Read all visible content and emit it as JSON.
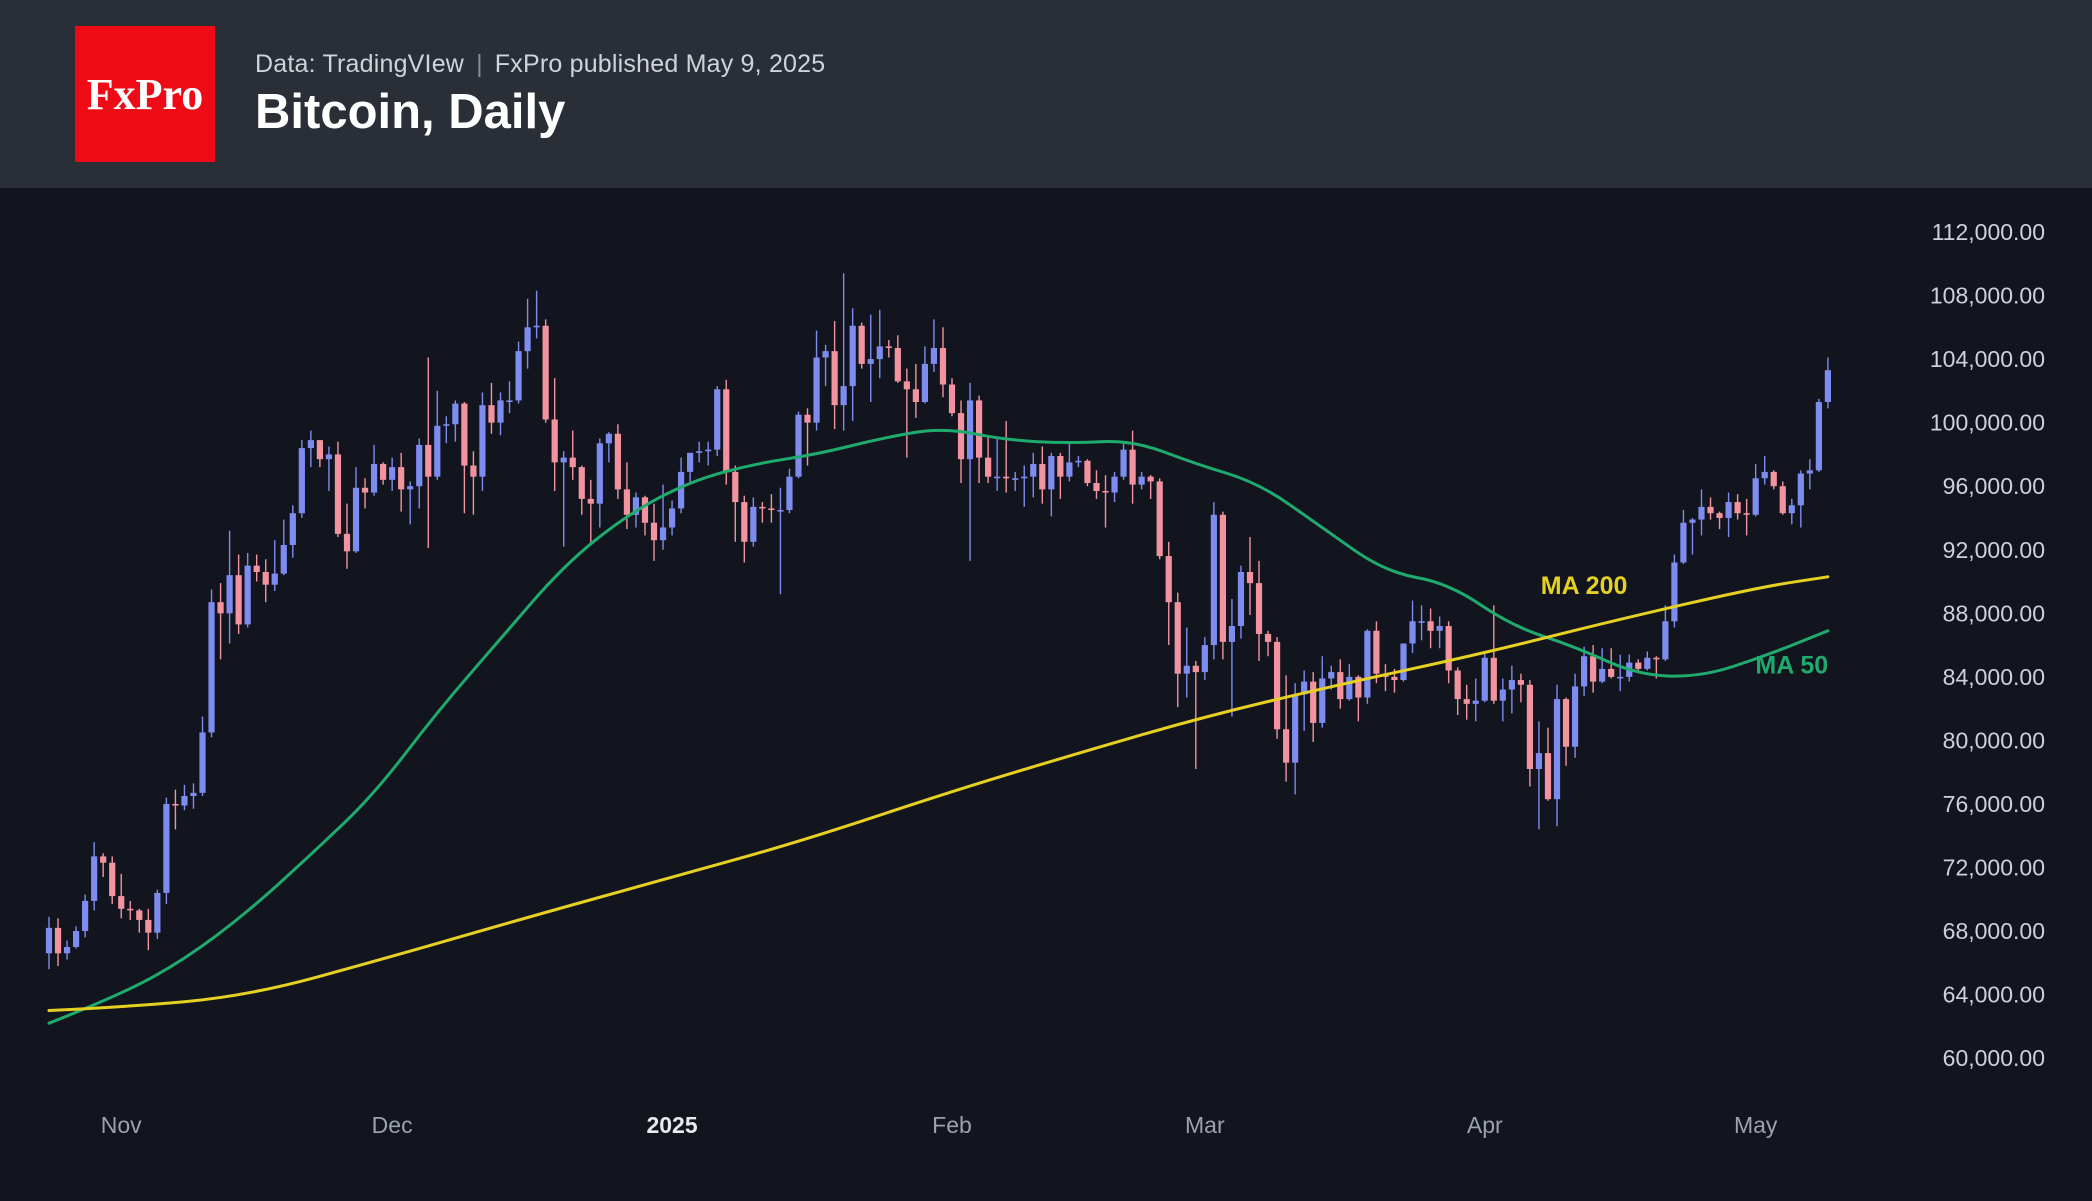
{
  "header": {
    "logo_text": "FxPro",
    "source_line": "Data: TradingVIew",
    "separator": "|",
    "published_line": "FxPro published May 9, 2025",
    "title": "Bitcoin, Daily"
  },
  "chart_data": {
    "type": "candlestick",
    "title": "Bitcoin, Daily",
    "interval": "daily",
    "start_date": "2024-10-24",
    "end_date": "2025-05-09",
    "price_unit": "USD, candle and MA values stored in thousands",
    "grid": false,
    "legend": false,
    "up_color": "#7e8bef",
    "down_color": "#f2939f",
    "y_axis": {
      "max": 112000,
      "min": 60000,
      "step": 4000,
      "tick_labels": [
        "112,000.00",
        "108,000.00",
        "104,000.00",
        "100,000.00",
        "96,000.00",
        "92,000.00",
        "88,000.00",
        "84,000.00",
        "80,000.00",
        "76,000.00",
        "72,000.00",
        "68,000.00",
        "64,000.00",
        "60,000.00"
      ]
    },
    "x_axis": {
      "labels": [
        {
          "text": "Nov",
          "day": 8,
          "emphasis": false
        },
        {
          "text": "Dec",
          "day": 38,
          "emphasis": false
        },
        {
          "text": "2025",
          "day": 69,
          "emphasis": true
        },
        {
          "text": "Feb",
          "day": 100,
          "emphasis": false
        },
        {
          "text": "Mar",
          "day": 128,
          "emphasis": false
        },
        {
          "text": "Apr",
          "day": 159,
          "emphasis": false
        },
        {
          "text": "May",
          "day": 189,
          "emphasis": false
        }
      ]
    },
    "candles": [
      [
        66.6,
        68.9,
        65.6,
        68.2
      ],
      [
        68.2,
        68.8,
        65.8,
        66.6
      ],
      [
        66.6,
        67.4,
        66.2,
        67.0
      ],
      [
        67.0,
        68.3,
        66.9,
        68.0
      ],
      [
        68.0,
        70.3,
        67.6,
        69.9
      ],
      [
        69.9,
        73.6,
        69.3,
        72.7
      ],
      [
        72.7,
        72.9,
        71.4,
        72.3
      ],
      [
        72.3,
        72.7,
        69.7,
        70.2
      ],
      [
        70.2,
        71.6,
        68.8,
        69.4
      ],
      [
        69.4,
        69.9,
        68.7,
        69.3
      ],
      [
        69.3,
        69.4,
        67.9,
        68.7
      ],
      [
        68.7,
        69.4,
        66.8,
        67.9
      ],
      [
        67.9,
        70.6,
        67.5,
        70.4
      ],
      [
        70.4,
        76.4,
        69.7,
        76.0
      ],
      [
        76.0,
        76.9,
        74.4,
        75.9
      ],
      [
        75.9,
        77.2,
        75.6,
        76.5
      ],
      [
        76.5,
        77.3,
        75.7,
        76.7
      ],
      [
        76.7,
        81.5,
        76.5,
        80.5
      ],
      [
        80.5,
        89.5,
        80.2,
        88.7
      ],
      [
        88.7,
        89.9,
        85.1,
        88.0
      ],
      [
        88.0,
        93.2,
        86.1,
        90.4
      ],
      [
        90.4,
        91.7,
        86.7,
        87.3
      ],
      [
        87.3,
        91.8,
        87.1,
        91.0
      ],
      [
        91.0,
        91.7,
        90.0,
        90.6
      ],
      [
        90.6,
        91.4,
        88.7,
        89.8
      ],
      [
        89.8,
        92.6,
        89.4,
        90.5
      ],
      [
        90.5,
        93.9,
        90.4,
        92.3
      ],
      [
        92.3,
        94.8,
        91.5,
        94.3
      ],
      [
        94.3,
        98.9,
        94.0,
        98.4
      ],
      [
        98.4,
        99.5,
        97.2,
        98.9
      ],
      [
        98.9,
        98.9,
        97.2,
        97.7
      ],
      [
        97.7,
        98.5,
        95.7,
        98.0
      ],
      [
        98.0,
        98.8,
        92.8,
        93.0
      ],
      [
        93.0,
        94.9,
        90.8,
        91.9
      ],
      [
        91.9,
        97.2,
        91.8,
        95.9
      ],
      [
        95.9,
        96.5,
        94.6,
        95.6
      ],
      [
        95.6,
        98.6,
        95.4,
        97.4
      ],
      [
        97.4,
        97.5,
        96.1,
        96.4
      ],
      [
        96.4,
        97.8,
        95.7,
        97.2
      ],
      [
        97.2,
        98.1,
        94.4,
        95.8
      ],
      [
        95.8,
        96.3,
        93.6,
        96.0
      ],
      [
        96.0,
        99.0,
        94.6,
        98.6
      ],
      [
        98.6,
        104.1,
        92.1,
        96.6
      ],
      [
        96.6,
        102.0,
        96.4,
        99.8
      ],
      [
        99.8,
        100.4,
        98.7,
        99.9
      ],
      [
        99.9,
        101.4,
        98.8,
        101.2
      ],
      [
        101.2,
        101.3,
        94.3,
        97.3
      ],
      [
        97.3,
        98.2,
        94.2,
        96.6
      ],
      [
        96.6,
        101.9,
        95.7,
        101.1
      ],
      [
        101.1,
        102.5,
        99.3,
        100.0
      ],
      [
        100.0,
        101.9,
        99.2,
        101.4
      ],
      [
        101.4,
        102.6,
        100.6,
        101.4
      ],
      [
        101.4,
        105.1,
        101.2,
        104.5
      ],
      [
        104.5,
        107.8,
        103.4,
        106.0
      ],
      [
        106.0,
        108.3,
        105.3,
        106.1
      ],
      [
        106.1,
        106.5,
        100.0,
        100.2
      ],
      [
        100.2,
        102.8,
        95.7,
        97.5
      ],
      [
        97.5,
        98.2,
        92.2,
        97.8
      ],
      [
        97.8,
        99.5,
        96.4,
        97.2
      ],
      [
        97.2,
        97.3,
        94.2,
        95.2
      ],
      [
        95.2,
        96.4,
        92.4,
        94.9
      ],
      [
        94.9,
        99.0,
        93.4,
        98.7
      ],
      [
        98.7,
        99.4,
        97.5,
        99.3
      ],
      [
        99.3,
        99.9,
        95.2,
        95.8
      ],
      [
        95.8,
        97.5,
        93.3,
        94.2
      ],
      [
        94.2,
        95.6,
        93.4,
        95.3
      ],
      [
        95.3,
        95.4,
        92.9,
        93.7
      ],
      [
        93.7,
        94.9,
        91.3,
        92.6
      ],
      [
        92.6,
        96.1,
        92.0,
        93.4
      ],
      [
        93.4,
        95.1,
        92.9,
        94.6
      ],
      [
        94.6,
        97.8,
        94.3,
        96.9
      ],
      [
        96.9,
        98.1,
        96.1,
        98.1
      ],
      [
        98.1,
        98.8,
        97.5,
        98.2
      ],
      [
        98.2,
        98.8,
        97.3,
        98.3
      ],
      [
        98.3,
        102.3,
        97.9,
        102.1
      ],
      [
        102.1,
        102.7,
        96.1,
        96.9
      ],
      [
        96.9,
        97.3,
        92.5,
        95.0
      ],
      [
        95.0,
        95.4,
        91.2,
        92.5
      ],
      [
        92.5,
        95.3,
        92.2,
        94.7
      ],
      [
        94.7,
        95.0,
        93.7,
        94.6
      ],
      [
        94.6,
        95.5,
        93.7,
        94.5
      ],
      [
        94.5,
        95.9,
        89.2,
        94.5
      ],
      [
        94.5,
        97.1,
        94.3,
        96.6
      ],
      [
        96.6,
        100.7,
        96.5,
        100.5
      ],
      [
        100.5,
        100.9,
        97.3,
        100.0
      ],
      [
        100.0,
        105.8,
        99.5,
        104.1
      ],
      [
        104.1,
        104.9,
        102.3,
        104.5
      ],
      [
        104.5,
        106.4,
        99.6,
        101.1
      ],
      [
        101.1,
        109.4,
        99.5,
        102.3
      ],
      [
        102.3,
        107.2,
        100.1,
        106.1
      ],
      [
        106.1,
        106.3,
        103.4,
        103.7
      ],
      [
        103.7,
        106.8,
        101.3,
        104.0
      ],
      [
        104.0,
        107.1,
        102.8,
        104.8
      ],
      [
        104.8,
        105.2,
        104.1,
        104.7
      ],
      [
        104.7,
        105.5,
        102.5,
        102.6
      ],
      [
        102.6,
        103.4,
        97.8,
        102.1
      ],
      [
        102.1,
        103.7,
        100.3,
        101.3
      ],
      [
        101.3,
        104.8,
        101.2,
        103.7
      ],
      [
        103.7,
        106.5,
        103.2,
        104.7
      ],
      [
        104.7,
        106.0,
        101.6,
        102.4
      ],
      [
        102.4,
        102.8,
        100.4,
        100.6
      ],
      [
        100.6,
        101.4,
        96.2,
        97.7
      ],
      [
        97.7,
        102.5,
        91.3,
        101.4
      ],
      [
        101.4,
        101.7,
        96.2,
        97.8
      ],
      [
        97.8,
        99.1,
        96.2,
        96.6
      ],
      [
        96.6,
        99.1,
        95.7,
        96.6
      ],
      [
        96.6,
        100.1,
        95.6,
        96.5
      ],
      [
        96.5,
        96.9,
        95.7,
        96.5
      ],
      [
        96.5,
        97.3,
        94.7,
        96.6
      ],
      [
        96.6,
        98.1,
        95.3,
        97.4
      ],
      [
        97.4,
        98.5,
        94.9,
        95.8
      ],
      [
        95.8,
        98.1,
        94.1,
        97.9
      ],
      [
        97.9,
        98.1,
        95.2,
        96.6
      ],
      [
        96.6,
        98.8,
        96.3,
        97.5
      ],
      [
        97.5,
        97.9,
        97.2,
        97.6
      ],
      [
        97.6,
        97.7,
        96.0,
        96.2
      ],
      [
        96.2,
        97.0,
        95.2,
        95.7
      ],
      [
        95.7,
        96.7,
        93.4,
        95.6
      ],
      [
        95.6,
        96.9,
        95.0,
        96.6
      ],
      [
        96.6,
        98.8,
        96.4,
        98.3
      ],
      [
        98.3,
        99.5,
        94.9,
        96.1
      ],
      [
        96.1,
        96.9,
        95.8,
        96.6
      ],
      [
        96.6,
        96.7,
        95.2,
        96.3
      ],
      [
        96.3,
        96.5,
        91.4,
        91.6
      ],
      [
        91.6,
        92.5,
        86.0,
        88.7
      ],
      [
        88.7,
        89.3,
        82.1,
        84.2
      ],
      [
        84.2,
        87.1,
        82.7,
        84.7
      ],
      [
        84.7,
        85.0,
        78.2,
        84.3
      ],
      [
        84.3,
        86.5,
        83.8,
        86.0
      ],
      [
        86.0,
        95.0,
        85.1,
        94.2
      ],
      [
        94.2,
        94.4,
        85.1,
        86.2
      ],
      [
        86.2,
        88.9,
        81.5,
        87.2
      ],
      [
        87.2,
        91.0,
        86.4,
        90.6
      ],
      [
        90.6,
        92.8,
        87.9,
        89.9
      ],
      [
        89.9,
        91.3,
        85.0,
        86.7
      ],
      [
        86.7,
        86.9,
        85.3,
        86.2
      ],
      [
        86.2,
        86.5,
        80.1,
        80.7
      ],
      [
        80.7,
        84.1,
        77.4,
        78.6
      ],
      [
        78.6,
        83.6,
        76.6,
        82.9
      ],
      [
        82.9,
        84.4,
        80.6,
        83.7
      ],
      [
        83.7,
        84.3,
        79.9,
        81.1
      ],
      [
        81.1,
        85.3,
        80.8,
        83.9
      ],
      [
        83.9,
        84.7,
        83.2,
        84.3
      ],
      [
        84.3,
        85.1,
        82.0,
        82.6
      ],
      [
        82.6,
        84.8,
        82.5,
        84.0
      ],
      [
        84.0,
        84.1,
        81.2,
        82.7
      ],
      [
        82.7,
        87.0,
        82.3,
        86.9
      ],
      [
        86.9,
        87.5,
        83.6,
        84.2
      ],
      [
        84.2,
        84.8,
        83.1,
        84.0
      ],
      [
        84.0,
        84.5,
        83.0,
        83.8
      ],
      [
        83.8,
        86.1,
        83.7,
        86.1
      ],
      [
        86.1,
        88.8,
        85.5,
        87.5
      ],
      [
        87.5,
        88.5,
        86.3,
        87.5
      ],
      [
        87.5,
        88.3,
        85.8,
        86.9
      ],
      [
        86.9,
        87.8,
        85.8,
        87.2
      ],
      [
        87.2,
        87.5,
        83.6,
        84.4
      ],
      [
        84.4,
        84.6,
        81.6,
        82.6
      ],
      [
        82.6,
        83.5,
        81.3,
        82.3
      ],
      [
        82.3,
        83.9,
        81.2,
        82.5
      ],
      [
        82.5,
        85.5,
        82.4,
        85.2
      ],
      [
        85.2,
        88.5,
        82.3,
        82.5
      ],
      [
        82.5,
        83.9,
        81.2,
        83.2
      ],
      [
        83.2,
        84.7,
        81.7,
        83.8
      ],
      [
        83.8,
        84.2,
        82.4,
        83.5
      ],
      [
        83.5,
        83.8,
        77.1,
        78.2
      ],
      [
        78.2,
        81.2,
        74.4,
        79.2
      ],
      [
        79.2,
        80.8,
        76.2,
        76.3
      ],
      [
        76.3,
        83.5,
        74.6,
        82.6
      ],
      [
        82.6,
        82.7,
        78.4,
        79.6
      ],
      [
        79.6,
        84.2,
        78.9,
        83.4
      ],
      [
        83.4,
        85.9,
        82.8,
        85.3
      ],
      [
        85.3,
        86.0,
        83.0,
        83.7
      ],
      [
        83.7,
        85.8,
        83.6,
        84.5
      ],
      [
        84.5,
        85.8,
        83.9,
        84.0
      ],
      [
        84.0,
        85.4,
        83.1,
        84.0
      ],
      [
        84.0,
        85.4,
        83.7,
        84.9
      ],
      [
        84.9,
        85.1,
        84.3,
        84.5
      ],
      [
        84.5,
        85.6,
        84.4,
        85.2
      ],
      [
        85.2,
        85.3,
        83.9,
        85.1
      ],
      [
        85.1,
        88.5,
        85.0,
        87.5
      ],
      [
        87.5,
        91.7,
        87.1,
        91.2
      ],
      [
        91.2,
        94.5,
        91.1,
        93.7
      ],
      [
        93.7,
        94.0,
        91.7,
        93.9
      ],
      [
        93.9,
        95.8,
        92.9,
        94.7
      ],
      [
        94.7,
        95.3,
        93.9,
        94.3
      ],
      [
        94.3,
        94.4,
        93.3,
        94.0
      ],
      [
        94.0,
        95.6,
        92.8,
        95.0
      ],
      [
        95.0,
        95.5,
        93.9,
        94.3
      ],
      [
        94.3,
        95.2,
        92.9,
        94.2
      ],
      [
        94.2,
        97.4,
        94.1,
        96.5
      ],
      [
        96.5,
        97.9,
        96.1,
        96.9
      ],
      [
        96.9,
        97.0,
        95.8,
        96.0
      ],
      [
        96.0,
        96.3,
        94.2,
        94.3
      ],
      [
        94.3,
        95.2,
        93.6,
        94.8
      ],
      [
        94.8,
        97.0,
        93.4,
        96.8
      ],
      [
        96.8,
        97.7,
        95.8,
        97.0
      ],
      [
        97.0,
        101.5,
        96.9,
        101.3
      ],
      [
        101.3,
        104.1,
        100.9,
        103.3
      ]
    ],
    "moving_averages": [
      {
        "name": "MA 50",
        "color": "#1fab6e",
        "points": [
          [
            0,
            62.2
          ],
          [
            8,
            64.0
          ],
          [
            15,
            66.2
          ],
          [
            22,
            69.2
          ],
          [
            29,
            72.8
          ],
          [
            36,
            76.6
          ],
          [
            43,
            81.8
          ],
          [
            50,
            86.4
          ],
          [
            57,
            91.0
          ],
          [
            64,
            94.2
          ],
          [
            71,
            96.3
          ],
          [
            78,
            97.4
          ],
          [
            85,
            98.0
          ],
          [
            92,
            99.0
          ],
          [
            99,
            99.7
          ],
          [
            106,
            98.9
          ],
          [
            113,
            98.7
          ],
          [
            120,
            98.9
          ],
          [
            127,
            97.4
          ],
          [
            134,
            96.2
          ],
          [
            141,
            93.4
          ],
          [
            148,
            90.6
          ],
          [
            155,
            89.9
          ],
          [
            162,
            87.2
          ],
          [
            169,
            85.9
          ],
          [
            176,
            84.1
          ],
          [
            183,
            84.0
          ],
          [
            190,
            85.3
          ],
          [
            197,
            86.9
          ]
        ]
      },
      {
        "name": "MA 200",
        "color": "#e6d022",
        "points": [
          [
            0,
            63.0
          ],
          [
            8,
            63.2
          ],
          [
            22,
            63.9
          ],
          [
            38,
            66.4
          ],
          [
            52,
            68.7
          ],
          [
            69,
            71.4
          ],
          [
            83,
            73.6
          ],
          [
            100,
            76.8
          ],
          [
            114,
            79.2
          ],
          [
            128,
            81.5
          ],
          [
            142,
            83.4
          ],
          [
            159,
            85.5
          ],
          [
            173,
            87.5
          ],
          [
            189,
            89.6
          ],
          [
            197,
            90.3
          ]
        ]
      }
    ],
    "annotations": [
      {
        "text": "MA 200",
        "day": 170,
        "value": 89.2,
        "color": "#e6d022"
      },
      {
        "text": "MA 50",
        "day": 193,
        "value": 84.2,
        "color": "#1fab6e"
      }
    ]
  }
}
